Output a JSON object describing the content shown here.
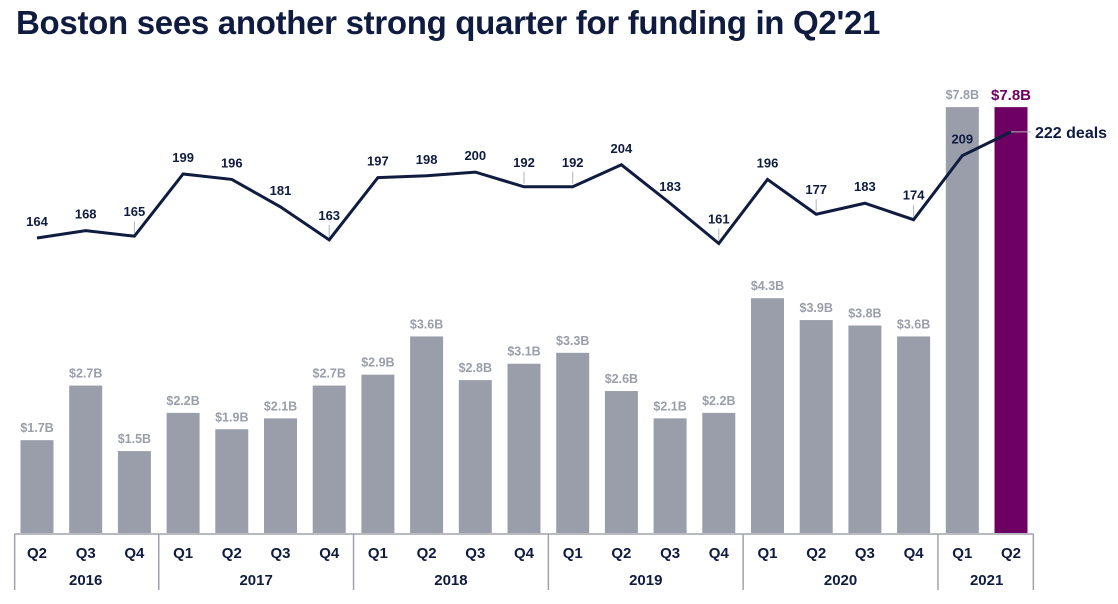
{
  "chart_data": {
    "type": "bar",
    "title": "Boston sees another strong quarter for funding in Q2'21",
    "xlabel": "",
    "ylabel": "",
    "grid": false,
    "categories": [
      "Q2'16",
      "Q3'16",
      "Q4'16",
      "Q1'17",
      "Q2'17",
      "Q3'17",
      "Q4'17",
      "Q1'18",
      "Q2'18",
      "Q3'18",
      "Q4'18",
      "Q1'19",
      "Q2'19",
      "Q3'19",
      "Q4'19",
      "Q1'20",
      "Q2'20",
      "Q3'20",
      "Q4'20",
      "Q1'21",
      "Q2'21"
    ],
    "quarters": [
      "Q2",
      "Q3",
      "Q4",
      "Q1",
      "Q2",
      "Q3",
      "Q4",
      "Q1",
      "Q2",
      "Q3",
      "Q4",
      "Q1",
      "Q2",
      "Q3",
      "Q4",
      "Q1",
      "Q2",
      "Q3",
      "Q4",
      "Q1",
      "Q2"
    ],
    "years": [
      {
        "label": "2016",
        "count": 3
      },
      {
        "label": "2017",
        "count": 4
      },
      {
        "label": "2018",
        "count": 4
      },
      {
        "label": "2019",
        "count": 4
      },
      {
        "label": "2020",
        "count": 4
      },
      {
        "label": "2021",
        "count": 2
      }
    ],
    "series": [
      {
        "name": "Funding ($B)",
        "type": "bar",
        "values": [
          1.7,
          2.7,
          1.5,
          2.2,
          1.9,
          2.1,
          2.7,
          2.9,
          3.6,
          2.8,
          3.1,
          3.3,
          2.6,
          2.1,
          2.2,
          4.3,
          3.9,
          3.8,
          3.6,
          7.8,
          7.8
        ],
        "labels": [
          "$1.7B",
          "$2.7B",
          "$1.5B",
          "$2.2B",
          "$1.9B",
          "$2.1B",
          "$2.7B",
          "$2.9B",
          "$3.6B",
          "$2.8B",
          "$3.1B",
          "$3.3B",
          "$2.6B",
          "$2.1B",
          "$2.2B",
          "$4.3B",
          "$3.9B",
          "$3.8B",
          "$3.6B",
          "$7.8B",
          "$7.8B"
        ],
        "color": "#9a9eab",
        "highlight_index": 20,
        "highlight_color": "#6e0063"
      },
      {
        "name": "Deals",
        "type": "line",
        "values": [
          164,
          168,
          165,
          199,
          196,
          181,
          163,
          197,
          198,
          200,
          192,
          192,
          204,
          183,
          161,
          196,
          177,
          183,
          174,
          209,
          222
        ],
        "color": "#0f1c3f",
        "end_label": "222 deals"
      }
    ]
  }
}
